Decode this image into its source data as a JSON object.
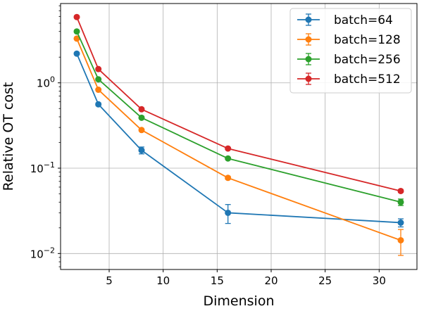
{
  "chart_data": {
    "type": "line",
    "xlabel": "Dimension",
    "ylabel": "Relative OT cost",
    "yscale": "log",
    "xlim": [
      0.5,
      33.5
    ],
    "ylim": [
      0.0065,
      8.5
    ],
    "xticks": [
      5,
      10,
      15,
      20,
      25,
      30
    ],
    "xtick_labels": [
      "5",
      "10",
      "15",
      "20",
      "25",
      "30"
    ],
    "yticks": [
      0.01,
      0.1,
      1
    ],
    "ytick_labels": [
      {
        "base": "10",
        "exp": "−2"
      },
      {
        "base": "10",
        "exp": "−1"
      },
      {
        "base": "10",
        "exp": "0"
      }
    ],
    "grid": true,
    "legend_position": "upper right",
    "x": [
      2,
      4,
      8,
      16,
      32
    ],
    "series": [
      {
        "name": "batch=64",
        "color": "#1f77b4",
        "values": [
          2.2,
          0.56,
          0.162,
          0.03,
          0.023
        ],
        "errors": [
          0.05,
          0.02,
          0.015,
          0.0075,
          0.0025
        ]
      },
      {
        "name": "batch=128",
        "color": "#ff7f0e",
        "values": [
          3.3,
          0.83,
          0.28,
          0.077,
          0.0143
        ],
        "errors": [
          0.06,
          0.02,
          0.008,
          0.003,
          0.0048
        ]
      },
      {
        "name": "batch=256",
        "color": "#2ca02c",
        "values": [
          4.0,
          1.1,
          0.39,
          0.13,
          0.04
        ],
        "errors": [
          0.07,
          0.02,
          0.008,
          0.003,
          0.0035
        ]
      },
      {
        "name": "batch=512",
        "color": "#d62728",
        "values": [
          5.9,
          1.45,
          0.49,
          0.17,
          0.054
        ],
        "errors": [
          0.08,
          0.02,
          0.008,
          0.003,
          0.002
        ]
      }
    ]
  }
}
